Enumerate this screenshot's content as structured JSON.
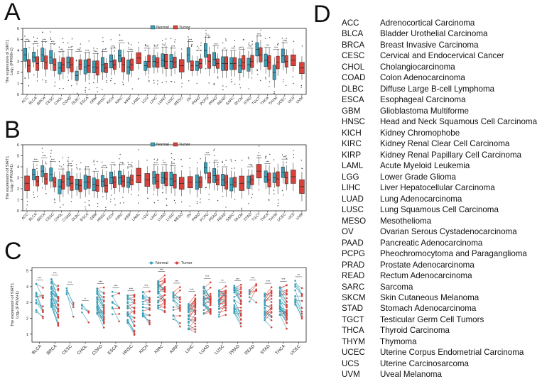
{
  "panel_letters": {
    "a": "A",
    "b": "B",
    "c": "C",
    "d": "D"
  },
  "colors": {
    "normal": "#3a9fb6",
    "tumor": "#d9413a",
    "sig": "#333333"
  },
  "chart_data": [
    {
      "type": "box",
      "panel": "A",
      "ylabel_line1": "The expression of SIRT1",
      "ylabel_line2": "Log₂ (FPKM+1)",
      "ylim": [
        0,
        6
      ],
      "yticks": [
        "0",
        "1",
        "2",
        "3",
        "4",
        "5",
        "6"
      ],
      "legend": {
        "normal": "Normal",
        "tumor": "Tumor"
      },
      "categories": [
        "ACC",
        "BLCA",
        "BRCA",
        "CESC",
        "CHOL",
        "COAD",
        "DLBC",
        "ESCA",
        "GBM",
        "HNSC",
        "KICH",
        "KIRC",
        "KIRP",
        "LAML",
        "LGG",
        "LIHC",
        "LUAD",
        "LUSC",
        "MESO",
        "OV",
        "PAAD",
        "PCPG",
        "PRAD",
        "READ",
        "SARC",
        "SKCM",
        "STAD",
        "TGCT",
        "THCA",
        "THYM",
        "UCEC",
        "UCS",
        "UVM"
      ],
      "normal": [
        3.6,
        3.4,
        3.6,
        3.4,
        2.4,
        2.9,
        1.7,
        2.5,
        2.5,
        2.7,
        3.0,
        3.5,
        2.5,
        null,
        2.6,
        3.0,
        3.1,
        3.0,
        null,
        3.6,
        2.6,
        4.0,
        3.2,
        2.8,
        2.8,
        2.6,
        2.7,
        4.1,
        3.1,
        2.0,
        3.5,
        null,
        null
      ],
      "tumor": [
        2.6,
        2.8,
        2.9,
        2.7,
        2.7,
        2.7,
        2.7,
        2.6,
        2.4,
        2.4,
        2.7,
        2.7,
        2.7,
        3.3,
        3.0,
        2.9,
        3.0,
        2.9,
        2.6,
        2.6,
        2.8,
        3.0,
        2.8,
        2.8,
        2.8,
        2.9,
        3.0,
        3.6,
        2.9,
        2.9,
        3.0,
        3.1,
        2.4
      ],
      "significance": [
        "***",
        "***",
        "***",
        "***",
        "***",
        "***",
        "***",
        "***",
        "***",
        "***",
        "***",
        "***",
        "***",
        "",
        "***",
        "***",
        "***",
        "***",
        "",
        "***",
        "*",
        "***",
        "***",
        "**",
        "***",
        "***",
        "***",
        "***",
        "***",
        "***",
        "***",
        "",
        ""
      ]
    },
    {
      "type": "box",
      "panel": "B",
      "ylabel_line1": "The expression of SIRT1",
      "ylabel_line2": "Log₂ (FPKM+1)",
      "ylim": [
        0,
        6
      ],
      "yticks": [
        "0",
        "1",
        "2",
        "3",
        "4",
        "5",
        "6"
      ],
      "legend": {
        "normal": "Normal",
        "tumor": "Tumor"
      },
      "categories": [
        "ACC",
        "BLCA",
        "BRCA",
        "CESC",
        "CHOL",
        "COAD",
        "DLBC",
        "ESCA",
        "GBM",
        "HNSC",
        "KICH",
        "KIRC",
        "KIRP",
        "LAML",
        "LGG",
        "LIHC",
        "LUAD",
        "LUSC",
        "MESO",
        "OV",
        "PAAD",
        "PCPG",
        "PRAD",
        "READ",
        "SARC",
        "SKCM",
        "STAD",
        "TGCT",
        "THCA",
        "THYM",
        "UCEC",
        "UCS",
        "UVM"
      ],
      "normal": [
        null,
        3.3,
        3.6,
        3.3,
        2.2,
        2.9,
        2.4,
        2.6,
        2.4,
        2.7,
        3.0,
        3.0,
        2.6,
        null,
        null,
        3.0,
        3.0,
        2.9,
        null,
        null,
        2.6,
        3.9,
        3.2,
        2.8,
        2.4,
        null,
        2.6,
        null,
        3.1,
        3.0,
        3.5,
        null,
        null
      ],
      "tumor": [
        2.5,
        2.7,
        2.9,
        2.6,
        2.6,
        2.5,
        2.3,
        2.6,
        2.3,
        2.3,
        2.6,
        2.7,
        2.8,
        3.2,
        2.8,
        2.7,
        2.9,
        2.7,
        2.5,
        2.6,
        2.6,
        3.0,
        2.8,
        2.6,
        2.6,
        2.5,
        2.8,
        3.6,
        2.8,
        2.9,
        3.0,
        3.1,
        2.2
      ],
      "significance": [
        "",
        "***",
        "***",
        "***",
        "*",
        "***",
        "",
        "***",
        "*",
        "***",
        "***",
        "***",
        "***",
        "",
        "",
        "***",
        "***",
        "***",
        "",
        "",
        "",
        "***",
        "***",
        "*",
        "",
        "",
        "***",
        "***",
        "***",
        "",
        "***",
        "",
        ""
      ]
    },
    {
      "type": "paired",
      "panel": "C",
      "ylabel_line1": "The expression of SIRT1",
      "ylabel_line2": "Log₂ (FPKM+1)",
      "ylim": [
        0.5,
        5.2
      ],
      "yticks": [
        "1",
        "2",
        "3",
        "4",
        "5"
      ],
      "legend": {
        "normal": "Normal",
        "tumor": "Tumor"
      },
      "categories": [
        "BLCA",
        "BRCA",
        "CESC",
        "CHOL",
        "COAD",
        "ESCA",
        "HNSC",
        "KICH",
        "KIRC",
        "KIRP",
        "LIHC",
        "LUAD",
        "LUSC",
        "PRAD",
        "READ",
        "STAD",
        "THCA",
        "UCEC"
      ],
      "normal_mean": [
        3.3,
        3.6,
        3.5,
        2.5,
        3.0,
        2.9,
        2.6,
        3.0,
        3.5,
        2.8,
        2.2,
        3.1,
        2.9,
        3.2,
        3.0,
        2.7,
        3.1,
        3.5
      ],
      "tumor_mean": [
        2.8,
        2.9,
        2.6,
        2.4,
        2.6,
        2.5,
        2.3,
        2.6,
        3.4,
        2.6,
        2.5,
        2.9,
        3.0,
        2.9,
        3.2,
        2.8,
        2.8,
        2.9
      ],
      "pairs": [
        12,
        28,
        4,
        4,
        28,
        8,
        22,
        16,
        30,
        14,
        26,
        28,
        28,
        26,
        6,
        24,
        30,
        12
      ],
      "significance": [
        "***",
        "***",
        "***",
        "*",
        "***",
        "***",
        "***",
        "***",
        "***",
        "***",
        "***",
        "***",
        "**",
        "***",
        "***",
        "***",
        "***",
        "**"
      ]
    }
  ],
  "abbreviations": [
    {
      "abbr": "ACC",
      "name": "Adrenocortical Carcinoma"
    },
    {
      "abbr": "BLCA",
      "name": "Bladder Urothelial Carcinoma"
    },
    {
      "abbr": "BRCA",
      "name": "Breast Invasive Carcinoma"
    },
    {
      "abbr": "CESC",
      "name": "Cervical and Endocervical Cancer"
    },
    {
      "abbr": "CHOL",
      "name": "Cholangiocarcinoma"
    },
    {
      "abbr": "COAD",
      "name": "Colon Adenocarcinoma"
    },
    {
      "abbr": "DLBC",
      "name": "Diffuse Large B-cell Lymphoma"
    },
    {
      "abbr": "ESCA",
      "name": "Esophageal Carcinoma"
    },
    {
      "abbr": "GBM",
      "name": "Glioblastoma Multiforme"
    },
    {
      "abbr": "HNSC",
      "name": "Head and Neck Squamous Cell Carcinoma"
    },
    {
      "abbr": "KICH",
      "name": "Kidney Chromophobe"
    },
    {
      "abbr": "KIRC",
      "name": "Kidney Renal Clear Cell Carcinoma"
    },
    {
      "abbr": "KIRP",
      "name": "Kidney Renal Papillary Cell Carcinoma"
    },
    {
      "abbr": "LAML",
      "name": "Acute Myeloid Leukemia"
    },
    {
      "abbr": "LGG",
      "name": "Lower Grade Glioma"
    },
    {
      "abbr": "LIHC",
      "name": "Liver Hepatocellular Carcinoma"
    },
    {
      "abbr": "LUAD",
      "name": "Lung Adenocarcinoma"
    },
    {
      "abbr": "LUSC",
      "name": "Lung Squamous Cell Carcinoma"
    },
    {
      "abbr": "MESO",
      "name": "Mesothelioma"
    },
    {
      "abbr": "OV",
      "name": "Ovarian Serous Cystadenocarcinoma"
    },
    {
      "abbr": "PAAD",
      "name": "Pancreatic Adenocarcinoma"
    },
    {
      "abbr": "PCPG",
      "name": "Pheochromocytoma and Paraganglioma"
    },
    {
      "abbr": "PRAD",
      "name": "Prostate Adenocarcinoma"
    },
    {
      "abbr": "READ",
      "name": "Rectum Adenocarcinoma"
    },
    {
      "abbr": "SARC",
      "name": "Sarcoma"
    },
    {
      "abbr": "SKCM",
      "name": "Skin Cutaneous Melanoma"
    },
    {
      "abbr": "STAD",
      "name": "Stomach Adenocarcinoma"
    },
    {
      "abbr": "TGCT",
      "name": "Testicular Germ Cell Tumors"
    },
    {
      "abbr": "THCA",
      "name": "Thyroid Carcinoma"
    },
    {
      "abbr": "THYM",
      "name": "Thymoma"
    },
    {
      "abbr": "UCEC",
      "name": "Uterine Corpus Endometrial Carcinoma"
    },
    {
      "abbr": "UCS",
      "name": "Uterine Carcinosarcoma"
    },
    {
      "abbr": "UVM",
      "name": "Uveal Melanoma"
    }
  ]
}
